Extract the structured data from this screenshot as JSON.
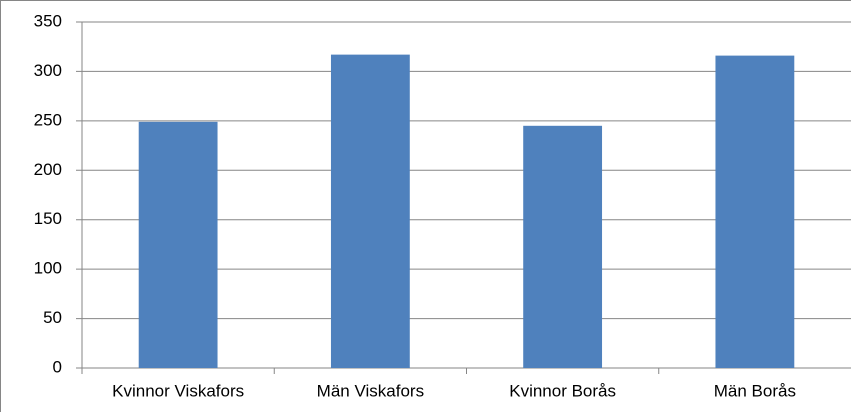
{
  "chart_data": {
    "type": "bar",
    "categories": [
      "Kvinnor Viskafors",
      "Män Viskafors",
      "Kvinnor Borås",
      "Män Borås"
    ],
    "values": [
      249,
      317,
      245,
      316
    ],
    "color": "#4f81bd",
    "ylim": [
      0,
      350
    ],
    "yticks": [
      0,
      50,
      100,
      150,
      200,
      250,
      300,
      350
    ],
    "grid": true
  }
}
